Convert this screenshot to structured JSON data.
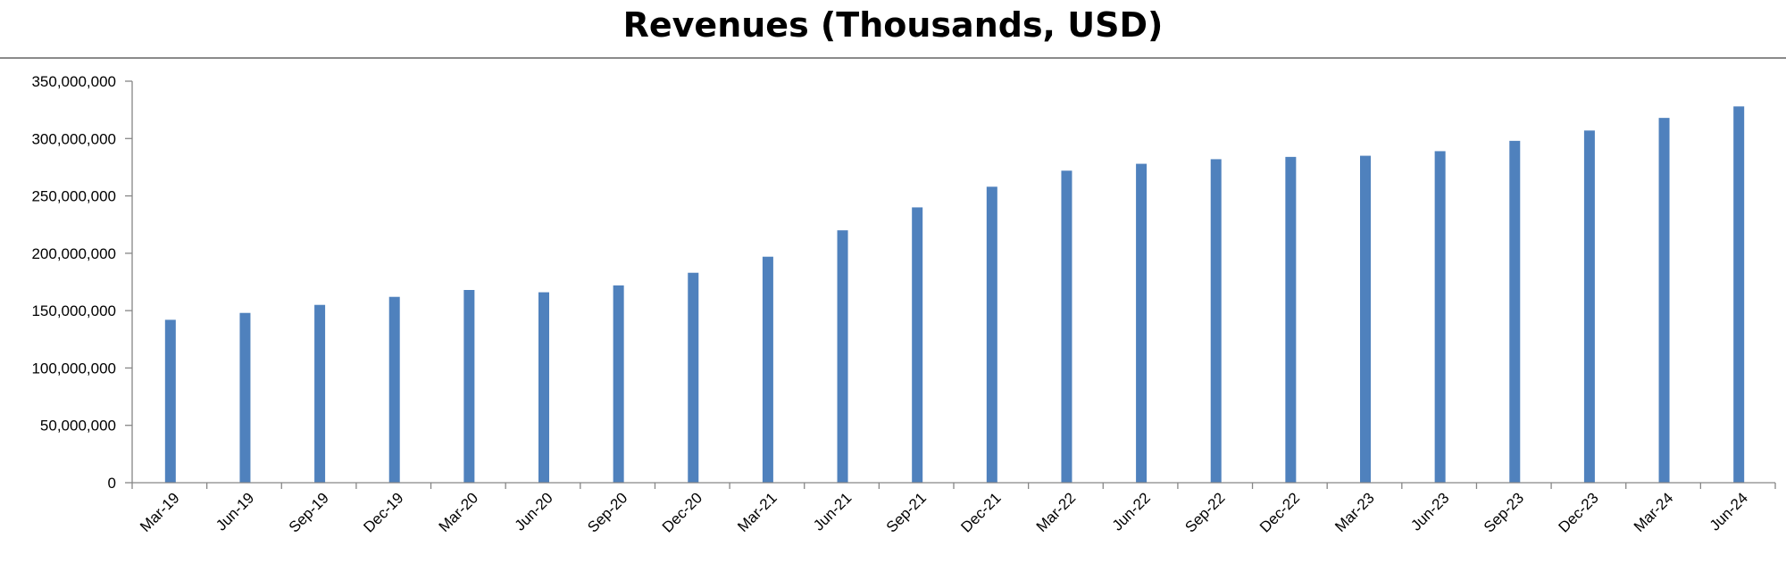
{
  "chart_data": {
    "type": "bar",
    "title": "Revenues (Thousands, USD)",
    "xlabel": "",
    "ylabel": "",
    "ylim": [
      0,
      350000000
    ],
    "yticks": [
      0,
      50000000,
      100000000,
      150000000,
      200000000,
      250000000,
      300000000,
      350000000
    ],
    "ytick_labels": [
      "0",
      "50,000,000",
      "100,000,000",
      "150,000,000",
      "200,000,000",
      "250,000,000",
      "300,000,000",
      "350,000,000"
    ],
    "categories": [
      "Mar-19",
      "Jun-19",
      "Sep-19",
      "Dec-19",
      "Mar-20",
      "Jun-20",
      "Sep-20",
      "Dec-20",
      "Mar-21",
      "Jun-21",
      "Sep-21",
      "Dec-21",
      "Mar-22",
      "Jun-22",
      "Sep-22",
      "Dec-22",
      "Mar-23",
      "Jun-23",
      "Sep-23",
      "Dec-23",
      "Mar-24",
      "Jun-24"
    ],
    "values": [
      142000000,
      148000000,
      155000000,
      162000000,
      168000000,
      166000000,
      172000000,
      183000000,
      197000000,
      220000000,
      240000000,
      258000000,
      272000000,
      278000000,
      282000000,
      284000000,
      285000000,
      289000000,
      298000000,
      307000000,
      318000000,
      328000000
    ],
    "bar_color": "#4f81bd",
    "grid": false,
    "legend": "none"
  }
}
